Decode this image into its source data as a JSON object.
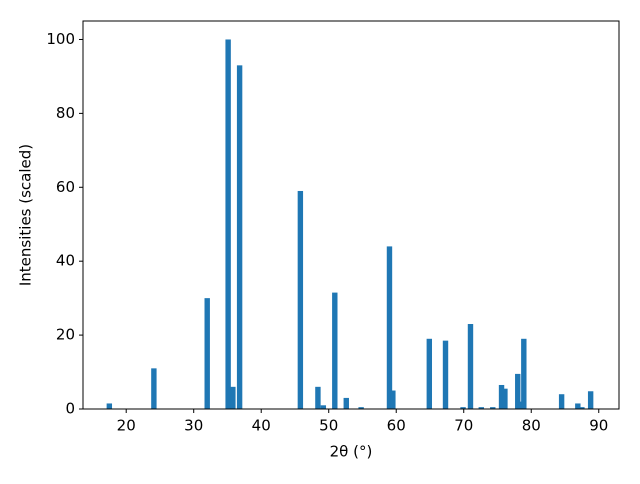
{
  "chart_data": {
    "type": "bar",
    "xlabel": "2θ (°)",
    "ylabel": "Intensities (scaled)",
    "x": [
      17.5,
      24.1,
      32.0,
      35.1,
      35.8,
      36.8,
      45.8,
      48.4,
      49.2,
      50.9,
      52.6,
      54.8,
      59.0,
      59.5,
      64.9,
      67.3,
      69.9,
      71.0,
      72.6,
      74.3,
      75.6,
      76.1,
      78.0,
      78.5,
      78.9,
      84.5,
      86.9,
      87.5,
      88.8
    ],
    "values": [
      1.5,
      11,
      30,
      100,
      6,
      93,
      59,
      6,
      1,
      31.5,
      3,
      0.5,
      44,
      5,
      19,
      18.5,
      0.5,
      23,
      0.5,
      0.5,
      6.5,
      5.5,
      9.5,
      2,
      19,
      4,
      1.5,
      0.5,
      4.8
    ],
    "color": "#1f77b4",
    "xlim": [
      13.6,
      93.0
    ],
    "xticks": [
      20,
      30,
      40,
      50,
      60,
      70,
      80,
      90
    ],
    "ylim": [
      0,
      105
    ],
    "yticks": [
      0,
      20,
      40,
      60,
      80,
      100
    ],
    "grid": false
  }
}
